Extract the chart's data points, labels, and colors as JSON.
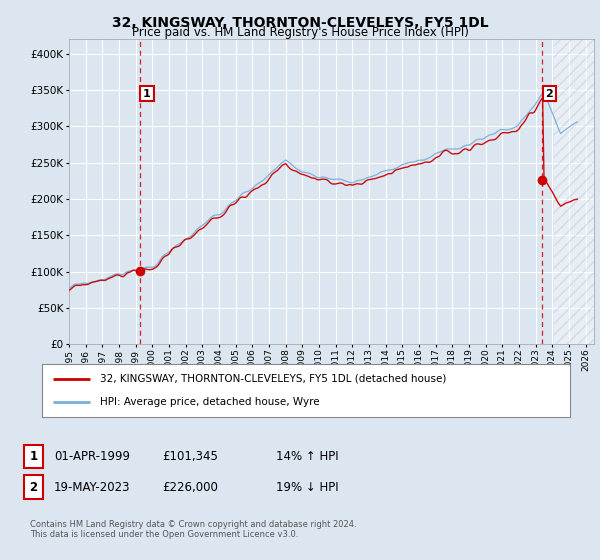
{
  "title": "32, KINGSWAY, THORNTON-CLEVELEYS, FY5 1DL",
  "subtitle": "Price paid vs. HM Land Registry's House Price Index (HPI)",
  "legend_label_red": "32, KINGSWAY, THORNTON-CLEVELEYS, FY5 1DL (detached house)",
  "legend_label_blue": "HPI: Average price, detached house, Wyre",
  "annotation1_label": "1",
  "annotation1_date": "01-APR-1999",
  "annotation1_price": "£101,345",
  "annotation1_hpi": "14% ↑ HPI",
  "annotation2_label": "2",
  "annotation2_date": "19-MAY-2023",
  "annotation2_price": "£226,000",
  "annotation2_hpi": "19% ↓ HPI",
  "footer": "Contains HM Land Registry data © Crown copyright and database right 2024.\nThis data is licensed under the Open Government Licence v3.0.",
  "sale1_year": 1999.25,
  "sale1_value": 101345,
  "sale2_year": 2023.38,
  "sale2_value": 226000,
  "red_color": "#cc0000",
  "blue_color": "#7aaed6",
  "background_color": "#dce6f1",
  "plot_bg_color": "#dce6f1",
  "ylim": [
    0,
    420000
  ],
  "xlim_start": 1995.0,
  "xlim_end": 2026.5,
  "yticks": [
    0,
    50000,
    100000,
    150000,
    200000,
    250000,
    300000,
    350000,
    400000
  ],
  "xticks": [
    1995,
    1996,
    1997,
    1998,
    1999,
    2000,
    2001,
    2002,
    2003,
    2004,
    2005,
    2006,
    2007,
    2008,
    2009,
    2010,
    2011,
    2012,
    2013,
    2014,
    2015,
    2016,
    2017,
    2018,
    2019,
    2020,
    2021,
    2022,
    2023,
    2024,
    2025,
    2026
  ]
}
